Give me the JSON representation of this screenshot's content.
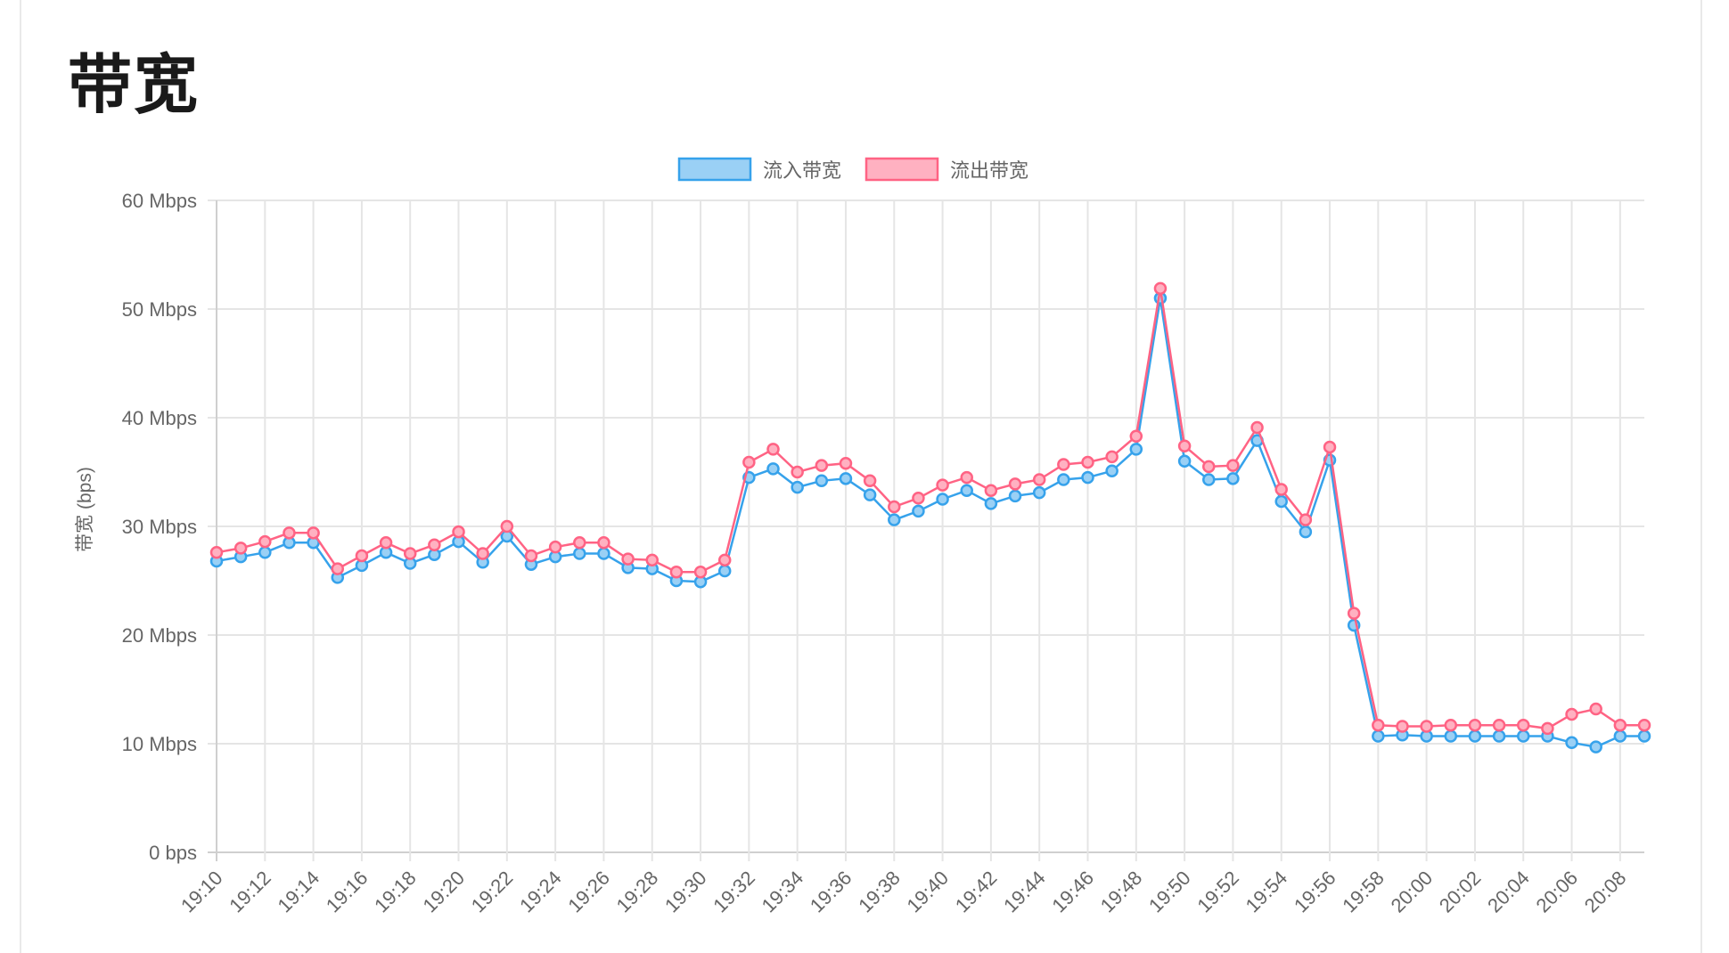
{
  "page": {
    "title": "带宽"
  },
  "colors": {
    "inbound_line": "#36a2eb",
    "inbound_fill": "#9ad0f5",
    "outbound_line": "#ff6384",
    "outbound_fill": "#ffb1c1",
    "grid": "#e5e5e5",
    "text": "#666666"
  },
  "chart_data": {
    "type": "line",
    "title": "",
    "xlabel": "",
    "ylabel": "带宽 (bps)",
    "ylim": [
      0,
      60
    ],
    "y_ticks": [
      "0 bps",
      "10 Mbps",
      "20 Mbps",
      "30 Mbps",
      "40 Mbps",
      "50 Mbps",
      "60 Mbps"
    ],
    "y_tick_values": [
      0,
      10,
      20,
      30,
      40,
      50,
      60
    ],
    "grid": true,
    "legend_position": "top",
    "x_tick_labels": [
      "19:10",
      "19:12",
      "19:14",
      "19:16",
      "19:18",
      "19:20",
      "19:22",
      "19:24",
      "19:26",
      "19:28",
      "19:30",
      "19:32",
      "19:34",
      "19:36",
      "19:38",
      "19:40",
      "19:42",
      "19:44",
      "19:46",
      "19:48",
      "19:50",
      "19:52",
      "19:54",
      "19:56",
      "19:58",
      "20:00",
      "20:02",
      "20:04",
      "20:06",
      "20:08"
    ],
    "x": [
      "19:10",
      "19:11",
      "19:12",
      "19:13",
      "19:14",
      "19:15",
      "19:16",
      "19:17",
      "19:18",
      "19:19",
      "19:20",
      "19:21",
      "19:22",
      "19:23",
      "19:24",
      "19:25",
      "19:26",
      "19:27",
      "19:28",
      "19:29",
      "19:30",
      "19:31",
      "19:32",
      "19:33",
      "19:34",
      "19:35",
      "19:36",
      "19:37",
      "19:38",
      "19:39",
      "19:40",
      "19:41",
      "19:42",
      "19:43",
      "19:44",
      "19:45",
      "19:46",
      "19:47",
      "19:48",
      "19:49",
      "19:50",
      "19:51",
      "19:52",
      "19:53",
      "19:54",
      "19:55",
      "19:56",
      "19:57",
      "19:58",
      "19:59",
      "20:00",
      "20:01",
      "20:02",
      "20:03",
      "20:04",
      "20:05",
      "20:06",
      "20:07",
      "20:08",
      "20:09"
    ],
    "series": [
      {
        "name": "流入带宽",
        "values": [
          26.8,
          27.2,
          27.6,
          28.5,
          28.5,
          25.3,
          26.4,
          27.6,
          26.6,
          27.4,
          28.6,
          26.7,
          29.1,
          26.5,
          27.2,
          27.5,
          27.5,
          26.2,
          26.1,
          25.0,
          24.9,
          25.9,
          34.5,
          35.3,
          33.6,
          34.2,
          34.4,
          32.9,
          30.6,
          31.4,
          32.5,
          33.3,
          32.1,
          32.8,
          33.1,
          34.3,
          34.5,
          35.1,
          37.1,
          51.0,
          36.0,
          34.3,
          34.4,
          37.9,
          32.3,
          29.5,
          36.1,
          20.9,
          10.7,
          10.8,
          10.7,
          10.7,
          10.7,
          10.7,
          10.7,
          10.7,
          10.1,
          9.7,
          10.7,
          10.7
        ]
      },
      {
        "name": "流出带宽",
        "values": [
          27.6,
          28.0,
          28.6,
          29.4,
          29.4,
          26.1,
          27.3,
          28.5,
          27.5,
          28.3,
          29.5,
          27.5,
          30.0,
          27.3,
          28.1,
          28.5,
          28.5,
          27.0,
          26.9,
          25.8,
          25.8,
          26.9,
          35.9,
          37.1,
          35.0,
          35.6,
          35.8,
          34.2,
          31.8,
          32.6,
          33.8,
          34.5,
          33.3,
          33.9,
          34.3,
          35.7,
          35.9,
          36.4,
          38.3,
          51.9,
          37.4,
          35.5,
          35.6,
          39.1,
          33.4,
          30.6,
          37.3,
          22.0,
          11.7,
          11.6,
          11.6,
          11.7,
          11.7,
          11.7,
          11.7,
          11.4,
          12.7,
          13.2,
          11.7,
          11.7
        ]
      }
    ]
  }
}
